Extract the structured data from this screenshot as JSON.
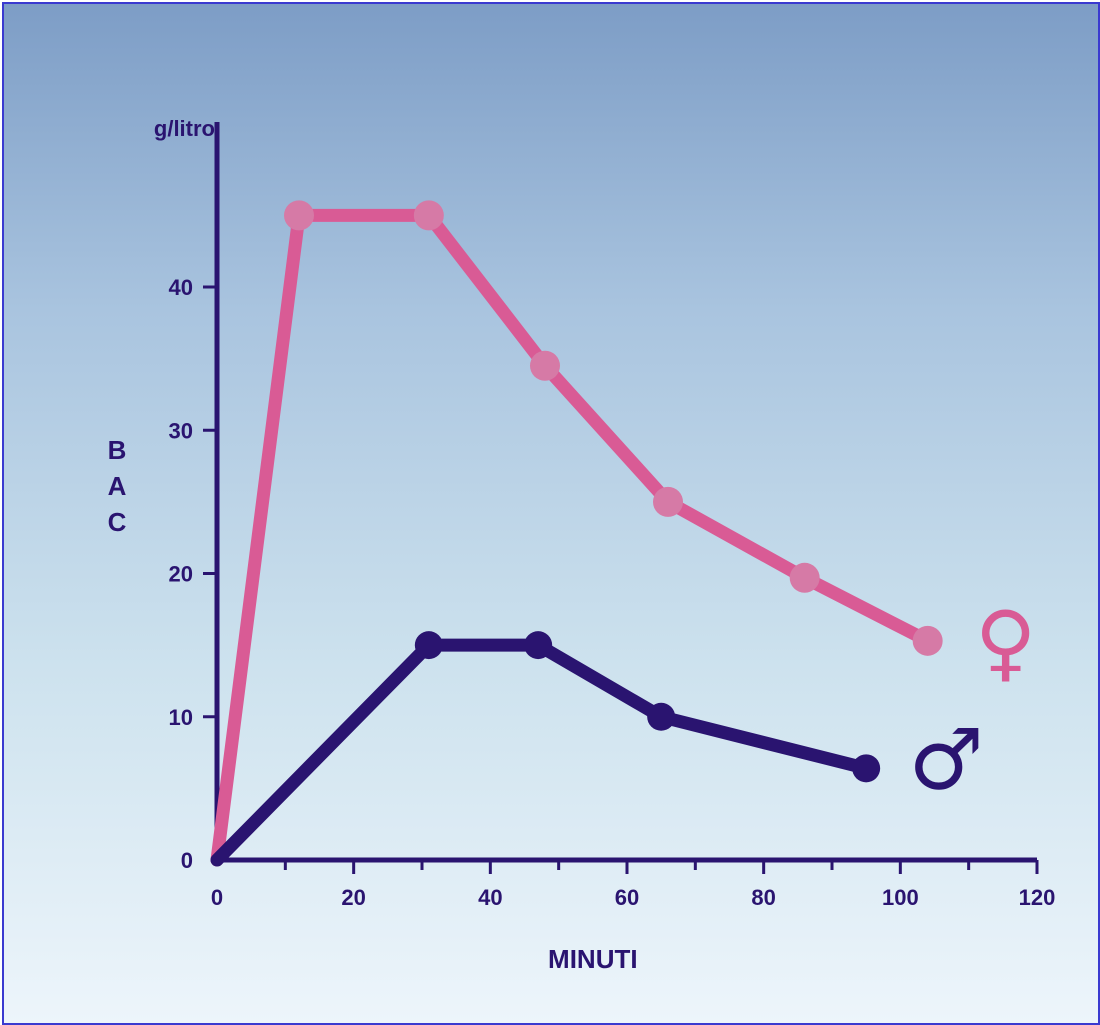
{
  "chart_data": {
    "type": "line",
    "ylabel": "g/litro",
    "ylabel_side": [
      "B",
      "A",
      "C"
    ],
    "xlabel": "MINUTI",
    "xlim": [
      0,
      120
    ],
    "ylim": [
      0,
      50
    ],
    "xticks": [
      0,
      20,
      40,
      60,
      80,
      100,
      120
    ],
    "yticks": [
      0,
      10,
      20,
      30,
      40
    ],
    "grid": false,
    "series": [
      {
        "name": "♀",
        "color": "#d95b95",
        "marker_color": "#d67aa6",
        "x": [
          0,
          12,
          31,
          48,
          66,
          86,
          104
        ],
        "y": [
          0,
          45,
          45,
          34.5,
          25,
          19.7,
          15.3
        ]
      },
      {
        "name": "♂",
        "color": "#2a1470",
        "marker_color": "#2a1470",
        "x": [
          0,
          31,
          47,
          65,
          95
        ],
        "y": [
          0,
          15,
          15,
          10,
          6.4
        ]
      }
    ]
  }
}
